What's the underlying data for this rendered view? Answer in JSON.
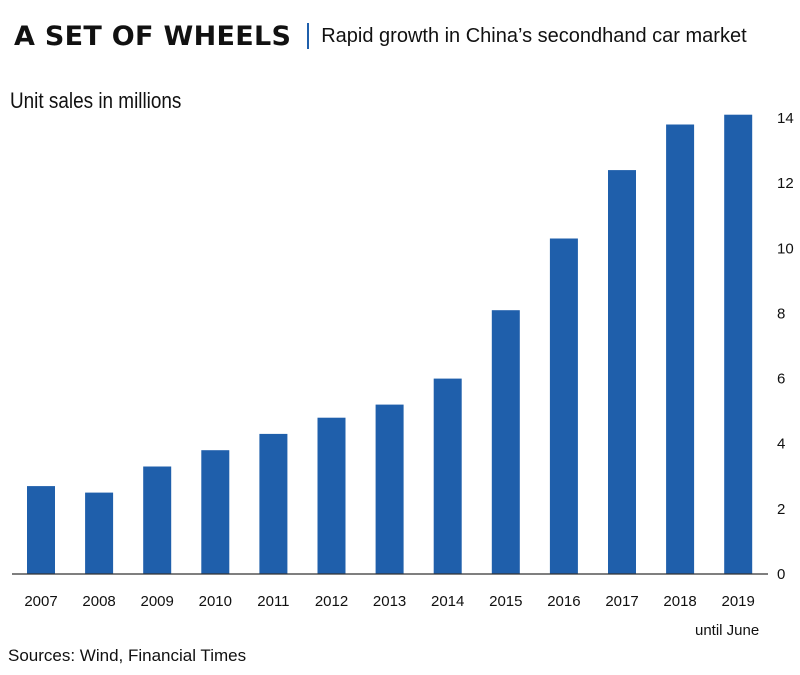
{
  "header": {
    "title": "A SET OF WHEELS",
    "subtitle": "Rapid growth in China’s secondhand car market"
  },
  "chart_data": {
    "type": "bar",
    "ylabel": "Unit sales in millions",
    "categories": [
      "2007",
      "2008",
      "2009",
      "2010",
      "2011",
      "2012",
      "2013",
      "2014",
      "2015",
      "2016",
      "2017",
      "2018",
      "2019"
    ],
    "values": [
      2.7,
      2.5,
      3.3,
      3.8,
      4.3,
      4.8,
      5.2,
      6.0,
      8.1,
      10.3,
      12.4,
      13.8,
      14.1
    ],
    "ylim": [
      0,
      14
    ],
    "yticks": [
      0,
      2,
      4,
      6,
      8,
      10,
      12,
      14
    ],
    "y_axis_position": "right",
    "grid": false,
    "bar_color": "#1f5fab",
    "annotation": "until June"
  },
  "footer": {
    "source": "Sources: Wind, Financial Times"
  }
}
